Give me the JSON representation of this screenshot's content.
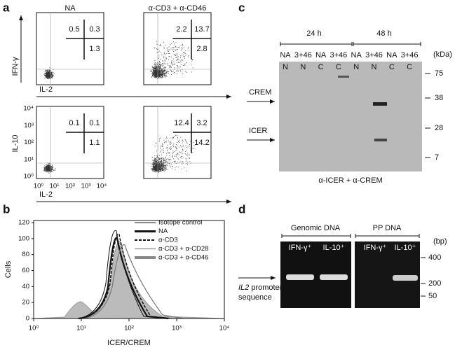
{
  "panel_a": {
    "label": "a",
    "conditions": [
      "NA",
      "α-CD3 + α-CD46"
    ],
    "top": {
      "y_label": "IFN-γ",
      "x_label": "IL-2",
      "quadrants": [
        [
          "0.5",
          "0.3",
          "1.3"
        ],
        [
          "2.2",
          "13.7",
          "2.8"
        ]
      ]
    },
    "bottom": {
      "y_label": "IL-10",
      "x_label": "IL-2",
      "quadrants": [
        [
          "0.1",
          "0.1",
          "1.1"
        ],
        [
          "12.4",
          "3.2",
          "14.2"
        ]
      ],
      "yticks": [
        "10⁴",
        "10³",
        "10²",
        "10¹",
        "10⁰"
      ],
      "xticks": [
        "10⁰",
        "10¹",
        "10²",
        "10³",
        "10⁴"
      ]
    }
  },
  "panel_b": {
    "label": "b",
    "y_label": "Cells",
    "x_label": "ICER/CREM",
    "yticks": [
      "0",
      "20",
      "40",
      "60",
      "80",
      "100",
      "120"
    ],
    "xticks": [
      "10⁰",
      "10¹",
      "10²",
      "10³",
      "10⁴"
    ],
    "legend": [
      "Isotope control",
      "NA",
      "α-CD3",
      "α-CD3 + α-CD28",
      "α-CD3 + α-CD46"
    ]
  },
  "panel_c": {
    "label": "c",
    "timepoints": [
      "24 h",
      "48 h"
    ],
    "lanes": [
      "NA",
      "3+46",
      "NA",
      "3+46",
      "NA",
      "3+46",
      "NA",
      "3+46"
    ],
    "fractions": [
      "N",
      "N",
      "C",
      "C",
      "N",
      "N",
      "C",
      "C"
    ],
    "unit": "(kDa)",
    "markers": [
      "75",
      "38",
      "28",
      "7"
    ],
    "bands": [
      "CREM",
      "ICER"
    ],
    "antibody": "α-ICER + α-CREM"
  },
  "panel_d": {
    "label": "d",
    "groups": [
      "Genomic DNA",
      "PP DNA"
    ],
    "lanes": [
      "IFN-γ⁺",
      "IL-10⁺",
      "IFN-γ⁺",
      "IL-10⁺"
    ],
    "unit": "(bp)",
    "markers": [
      "400",
      "200",
      "50"
    ],
    "band_label": {
      "gene": "IL2",
      "rest_line1": " promoter",
      "line2": "sequence"
    }
  }
}
